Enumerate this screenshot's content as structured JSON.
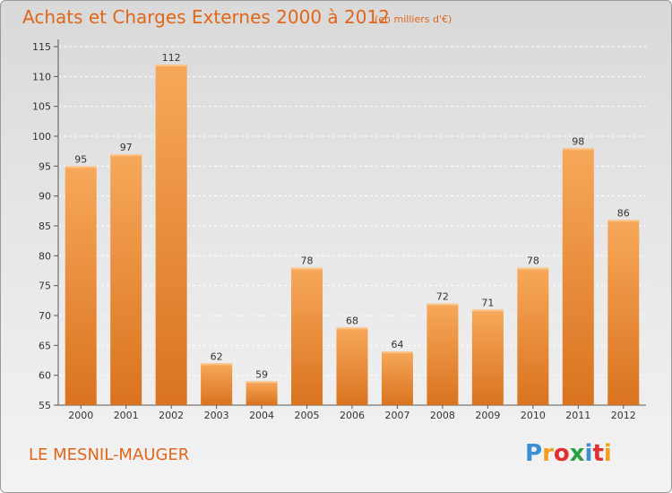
{
  "title": "Achats et Charges Externes 2000 à 2012",
  "subtitle": "(en milliers d'€)",
  "commune": "LE MESNIL-MAUGER",
  "logo": {
    "letters": [
      "P",
      "r",
      "o",
      "x",
      "i",
      "t",
      "i"
    ],
    "colors": [
      "#3a8fd0",
      "#f0a020",
      "#e03030",
      "#2aa040",
      "#3a8fd0",
      "#e03030",
      "#f0a020"
    ]
  },
  "colors": {
    "bar_light": "#f7a85a",
    "bar_dark": "#d9731f",
    "text": "#e0661a"
  },
  "chart_data": {
    "type": "bar",
    "categories": [
      "2000",
      "2001",
      "2002",
      "2003",
      "2004",
      "2005",
      "2006",
      "2007",
      "2008",
      "2009",
      "2010",
      "2011",
      "2012"
    ],
    "values": [
      95,
      97,
      112,
      62,
      59,
      78,
      68,
      64,
      72,
      71,
      78,
      98,
      86
    ],
    "ylim": [
      55,
      115
    ],
    "yticks": [
      55,
      60,
      65,
      70,
      75,
      80,
      85,
      90,
      95,
      100,
      105,
      110,
      115
    ],
    "grid": true
  }
}
